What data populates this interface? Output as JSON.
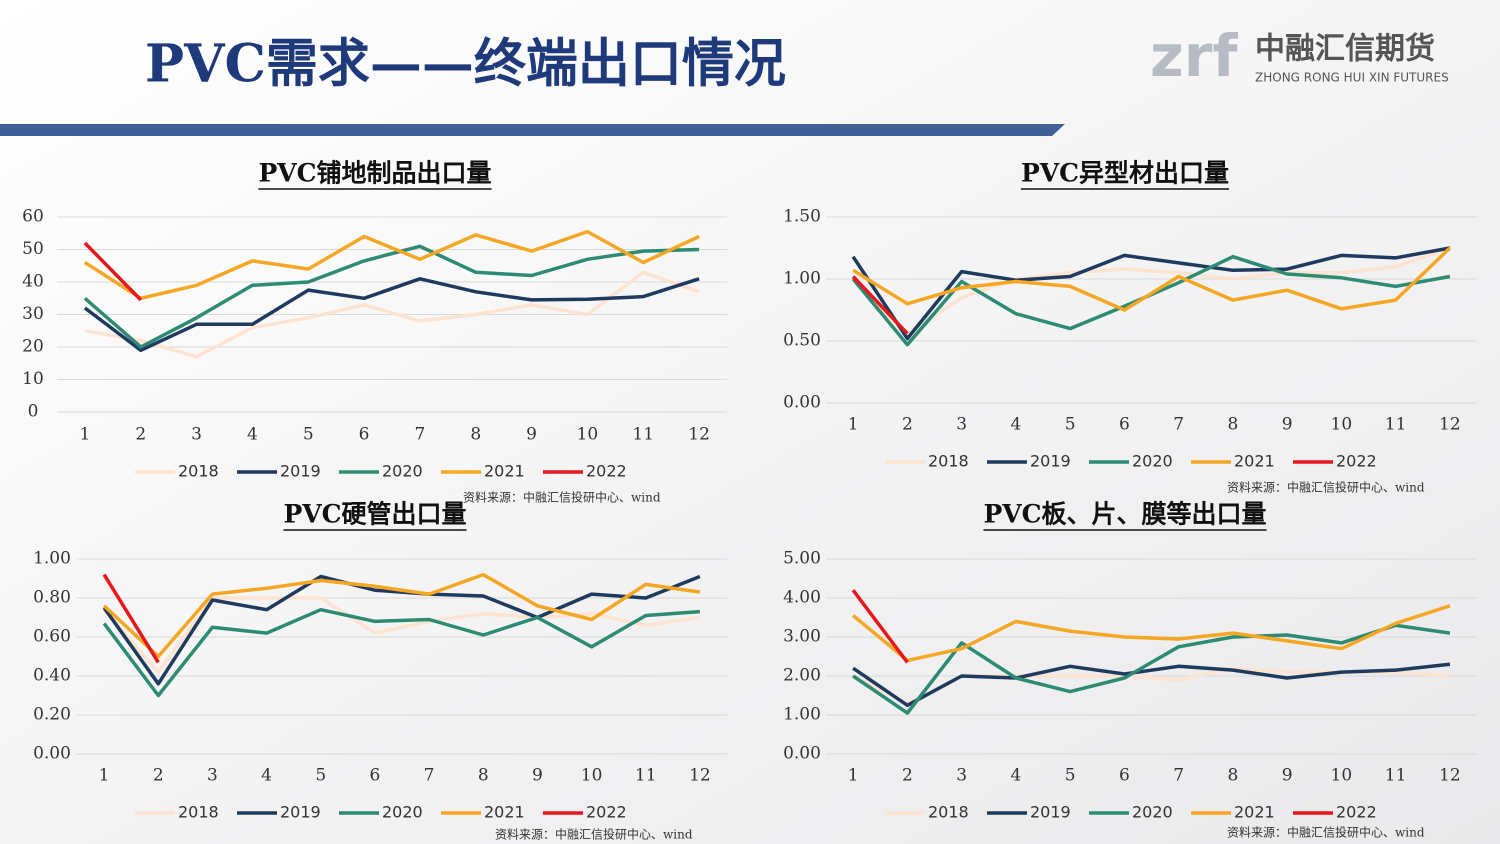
{
  "header": {
    "title": "PVC需求——终端出口情况",
    "logo_mark": "zrf",
    "logo_cn": "中融汇信期货",
    "logo_en": "ZHONG RONG HUI XIN FUTURES"
  },
  "chart_data": [
    {
      "type": "line",
      "title": "PVC铺地制品出口量",
      "source": "资料来源：中融汇信投研中心、wind",
      "categories": [
        "1",
        "2",
        "3",
        "4",
        "5",
        "6",
        "7",
        "8",
        "9",
        "10",
        "11",
        "12"
      ],
      "ylim": [
        0,
        60
      ],
      "yticks": [
        0,
        10,
        20,
        30,
        40,
        50,
        60
      ],
      "grid": true,
      "legend": "bottom",
      "series": [
        {
          "name": "2018",
          "color": "#fde3d0",
          "values": [
            25,
            22,
            17,
            26,
            29,
            33,
            28,
            30,
            33,
            30,
            43,
            37
          ]
        },
        {
          "name": "2019",
          "color": "#1f3a5f",
          "values": [
            32,
            19,
            27,
            27,
            37.5,
            35,
            41,
            37,
            34.5,
            34.7,
            35.5,
            41
          ]
        },
        {
          "name": "2020",
          "color": "#2e8b73",
          "values": [
            35,
            20,
            29,
            39,
            40,
            46.5,
            51,
            43,
            42,
            47,
            49.5,
            50
          ]
        },
        {
          "name": "2021",
          "color": "#f5a623",
          "values": [
            46,
            35,
            39,
            46.5,
            44,
            54,
            47,
            54.5,
            49.5,
            55.5,
            46,
            54
          ]
        },
        {
          "name": "2022",
          "color": "#e8171b",
          "values": [
            52,
            34.5,
            null,
            null,
            null,
            null,
            null,
            null,
            null,
            null,
            null,
            null
          ]
        }
      ]
    },
    {
      "type": "line",
      "title": "PVC异型材出口量",
      "source": "资料来源：中融汇信投研中心、wind",
      "categories": [
        "1",
        "2",
        "3",
        "4",
        "5",
        "6",
        "7",
        "8",
        "9",
        "10",
        "11",
        "12"
      ],
      "ylim": [
        0,
        1.5
      ],
      "yticks": [
        {
          "value": 0,
          "label": "0.00"
        },
        {
          "value": 0.5,
          "label": "0.50"
        },
        {
          "value": 1,
          "label": "1.00"
        },
        {
          "value": 1.5,
          "label": "1.50"
        }
      ],
      "grid": true,
      "legend": "bottom",
      "series": [
        {
          "name": "2018",
          "color": "#fde3d0",
          "values": [
            1.0,
            0.55,
            0.85,
            1.0,
            1.05,
            1.08,
            1.05,
            1.0,
            1.05,
            1.05,
            1.1,
            1.25
          ]
        },
        {
          "name": "2019",
          "color": "#1f3a5f",
          "values": [
            1.18,
            0.52,
            1.06,
            0.99,
            1.02,
            1.19,
            1.13,
            1.07,
            1.08,
            1.19,
            1.17,
            1.25
          ]
        },
        {
          "name": "2020",
          "color": "#2e8b73",
          "values": [
            1.0,
            0.47,
            0.98,
            0.72,
            0.6,
            0.78,
            0.97,
            1.18,
            1.04,
            1.01,
            0.94,
            1.02
          ]
        },
        {
          "name": "2021",
          "color": "#f5a623",
          "values": [
            1.07,
            0.8,
            0.93,
            0.98,
            0.94,
            0.75,
            1.02,
            0.83,
            0.91,
            0.76,
            0.83,
            1.25
          ]
        },
        {
          "name": "2022",
          "color": "#e8171b",
          "values": [
            1.02,
            0.56,
            null,
            null,
            null,
            null,
            null,
            null,
            null,
            null,
            null,
            null
          ]
        }
      ]
    },
    {
      "type": "line",
      "title": "PVC硬管出口量",
      "source": "资料来源：中融汇信投研中心、wind",
      "categories": [
        "1",
        "2",
        "3",
        "4",
        "5",
        "6",
        "7",
        "8",
        "9",
        "10",
        "11",
        "12"
      ],
      "ylim": [
        0,
        1
      ],
      "yticks": [
        {
          "value": 0,
          "label": "0.00"
        },
        {
          "value": 0.2,
          "label": "0.20"
        },
        {
          "value": 0.4,
          "label": "0.40"
        },
        {
          "value": 0.6,
          "label": "0.60"
        },
        {
          "value": 0.8,
          "label": "0.80"
        },
        {
          "value": 1,
          "label": "1.00"
        }
      ],
      "grid": true,
      "legend": "bottom",
      "series": [
        {
          "name": "2018",
          "color": "#fde3d0",
          "values": [
            0.74,
            0.42,
            0.8,
            0.8,
            0.8,
            0.62,
            0.68,
            0.72,
            0.7,
            0.72,
            0.66,
            0.7
          ]
        },
        {
          "name": "2019",
          "color": "#1f3a5f",
          "values": [
            0.75,
            0.36,
            0.79,
            0.74,
            0.91,
            0.84,
            0.82,
            0.81,
            0.7,
            0.82,
            0.8,
            0.91
          ]
        },
        {
          "name": "2020",
          "color": "#2e8b73",
          "values": [
            0.67,
            0.3,
            0.65,
            0.62,
            0.74,
            0.68,
            0.69,
            0.61,
            0.7,
            0.55,
            0.71,
            0.73
          ]
        },
        {
          "name": "2021",
          "color": "#f5a623",
          "values": [
            0.76,
            0.5,
            0.82,
            0.85,
            0.89,
            0.86,
            0.82,
            0.92,
            0.76,
            0.69,
            0.87,
            0.83
          ]
        },
        {
          "name": "2022",
          "color": "#e8171b",
          "values": [
            0.92,
            0.47,
            null,
            null,
            null,
            null,
            null,
            null,
            null,
            null,
            null,
            null
          ]
        }
      ]
    },
    {
      "type": "line",
      "title": "PVC板、片、膜等出口量",
      "source": "资料来源：中融汇信投研中心、wind",
      "categories": [
        "1",
        "2",
        "3",
        "4",
        "5",
        "6",
        "7",
        "8",
        "9",
        "10",
        "11",
        "12"
      ],
      "ylim": [
        0,
        5
      ],
      "yticks": [
        {
          "value": 0,
          "label": "0.00"
        },
        {
          "value": 1,
          "label": "1.00"
        },
        {
          "value": 2,
          "label": "2.00"
        },
        {
          "value": 3,
          "label": "3.00"
        },
        {
          "value": 4,
          "label": "4.00"
        },
        {
          "value": 5,
          "label": "5.00"
        }
      ],
      "grid": true,
      "legend": "bottom",
      "series": [
        {
          "name": "2018",
          "color": "#fde3d0",
          "values": [
            2.0,
            1.3,
            2.0,
            2.0,
            2.0,
            2.0,
            1.9,
            2.2,
            2.1,
            2.1,
            2.1,
            2.0
          ]
        },
        {
          "name": "2019",
          "color": "#1f3a5f",
          "values": [
            2.2,
            1.25,
            2.0,
            1.95,
            2.25,
            2.05,
            2.25,
            2.15,
            1.95,
            2.1,
            2.15,
            2.3
          ]
        },
        {
          "name": "2020",
          "color": "#2e8b73",
          "values": [
            2.0,
            1.05,
            2.85,
            1.95,
            1.6,
            1.95,
            2.75,
            3.0,
            3.05,
            2.85,
            3.3,
            3.1
          ]
        },
        {
          "name": "2021",
          "color": "#f5a623",
          "values": [
            3.55,
            2.4,
            2.7,
            3.4,
            3.15,
            3.0,
            2.95,
            3.1,
            2.9,
            2.7,
            3.35,
            3.8
          ]
        },
        {
          "name": "2022",
          "color": "#e8171b",
          "values": [
            4.2,
            2.35,
            null,
            null,
            null,
            null,
            null,
            null,
            null,
            null,
            null,
            null
          ]
        }
      ]
    }
  ]
}
